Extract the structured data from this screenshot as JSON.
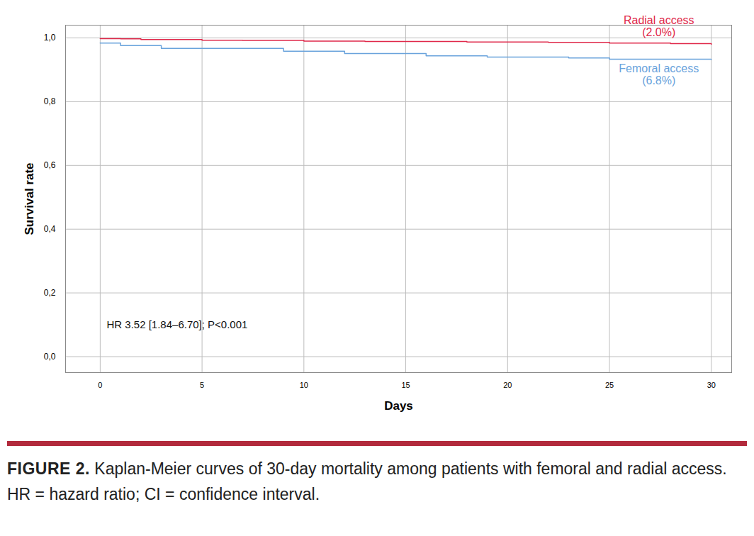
{
  "chart_data": {
    "type": "line",
    "x_label": "Days",
    "y_label": "Survival rate",
    "xlim": [
      -1.7,
      31
    ],
    "ylim": [
      -0.05,
      1.04
    ],
    "xticks": [
      0,
      5,
      10,
      15,
      20,
      25,
      30
    ],
    "yticks": [
      {
        "value": 0,
        "label": "0,0"
      },
      {
        "value": 0.2,
        "label": "0,2"
      },
      {
        "value": 0.4,
        "label": "0,4"
      },
      {
        "value": 0.6,
        "label": "0,6"
      },
      {
        "value": 0.8,
        "label": "0,8"
      },
      {
        "value": 1,
        "label": "1,0"
      }
    ],
    "grid": true,
    "line_style": "step",
    "series": [
      {
        "name": "Radial access",
        "mortality_label": "(2.0%)",
        "color": "#e0294a",
        "x": [
          0,
          1,
          2,
          5,
          7,
          10,
          13,
          18,
          22,
          25,
          28,
          30
        ],
        "values": [
          0.998,
          0.997,
          0.995,
          0.993,
          0.992,
          0.99,
          0.989,
          0.987,
          0.986,
          0.984,
          0.982,
          0.98
        ]
      },
      {
        "name": "Femoral access",
        "mortality_label": "(6.8%)",
        "color": "#6aa3dc",
        "x": [
          0,
          1,
          3,
          9,
          12,
          16,
          19,
          23,
          25,
          30
        ],
        "values": [
          0.984,
          0.976,
          0.967,
          0.958,
          0.951,
          0.944,
          0.94,
          0.937,
          0.933,
          0.932
        ]
      }
    ],
    "annotation": "HR 3.52 [1.84–6.70]; P<0.001",
    "figure_label": "FIGURE 2.",
    "caption": "Kaplan-Meier curves of 30-day mortality among patients with femoral and radial access. HR = hazard ratio; CI = confidence interval."
  }
}
